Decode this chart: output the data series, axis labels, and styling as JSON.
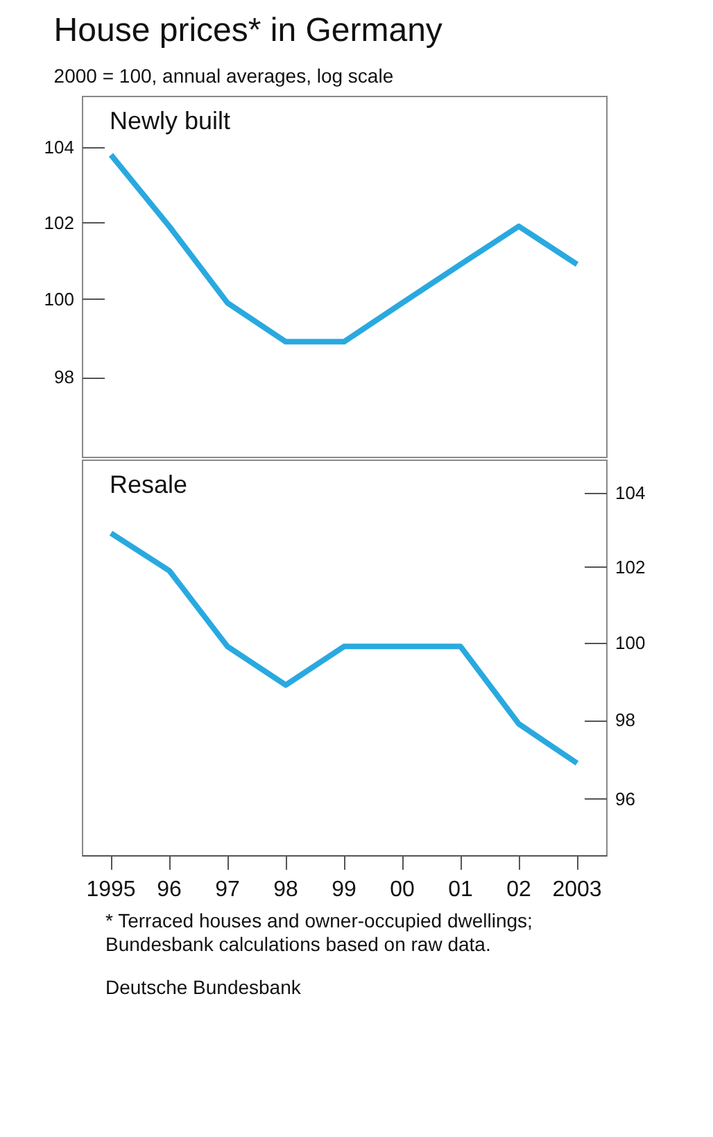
{
  "chart_data": [
    {
      "type": "line",
      "title": "House prices* in Germany",
      "subtitle": "2000 = 100, annual averages, log scale",
      "categories": [
        "1995",
        "96",
        "97",
        "98",
        "99",
        "00",
        "01",
        "02",
        "2003"
      ],
      "series": [
        {
          "name": "Newly built",
          "color": "#29a9e0",
          "values": [
            103.8,
            101.9,
            99.9,
            98.9,
            98.9,
            99.9,
            100.9,
            101.9,
            100.9
          ]
        }
      ],
      "log": "y",
      "ylim": [
        96,
        105.4
      ],
      "yticks": [
        98,
        100,
        102,
        104
      ],
      "tick_labels": "y",
      "grid": false
    },
    {
      "type": "line",
      "categories": [
        "1995",
        "96",
        "97",
        "98",
        "99",
        "00",
        "01",
        "02",
        "2003"
      ],
      "series": [
        {
          "name": "Resale",
          "color": "#29a9e0",
          "axis": "y2",
          "values": [
            102.9,
            101.9,
            99.9,
            98.9,
            99.9,
            99.9,
            99.9,
            97.9,
            96.9
          ]
        }
      ],
      "log": "y2",
      "y2lim": [
        94.6,
        104.9
      ],
      "y2ticks": [
        96,
        98,
        100,
        102,
        104
      ],
      "grid": false,
      "annotations": [
        "* Terraced houses and owner-occupied dwellings; Bundesbank calculations based on raw data.",
        "Deutsche Bundesbank"
      ]
    }
  ]
}
